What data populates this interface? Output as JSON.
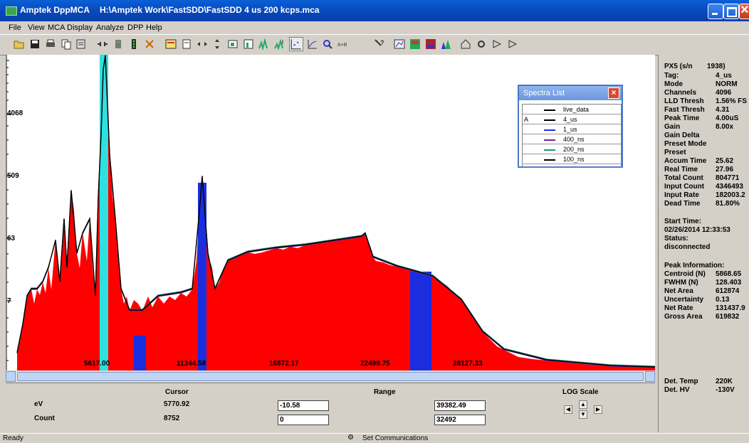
{
  "window": {
    "app_title": "Amptek DppMCA",
    "file_path": "H:\\Amptek Work\\FastSDD\\FastSDD 4 us 200 kcps.mca"
  },
  "menu": [
    "File",
    "View",
    "MCA",
    "Display",
    "Analyze",
    "DPP",
    "Help"
  ],
  "plot": {
    "y_ticks": [
      "4068",
      "509",
      "63",
      "7"
    ],
    "x_ticks": [
      "5617.00",
      "11244.58",
      "16872.17",
      "22499.75",
      "28127.33"
    ]
  },
  "spectra_list": {
    "title": "Spectra List",
    "items": [
      {
        "marker": "",
        "name": "live_data",
        "color": "#000000"
      },
      {
        "marker": "A",
        "name": "4_us",
        "color": "#000000"
      },
      {
        "marker": "",
        "name": "1_us",
        "color": "#1f2ee8"
      },
      {
        "marker": "",
        "name": "400_ns",
        "color": "#7a1a9a"
      },
      {
        "marker": "",
        "name": "200_ns",
        "color": "#1e9a6a"
      },
      {
        "marker": "",
        "name": "100_ns",
        "color": "#000000"
      }
    ]
  },
  "info": {
    "device": "PX5 (s/n",
    "serial": "1938)",
    "rows": [
      {
        "label": "Tag:",
        "value": "4_us"
      },
      {
        "label": "Mode",
        "value": "NORM"
      },
      {
        "label": "Channels",
        "value": "4096"
      },
      {
        "label": "LLD Thresh",
        "value": "1.56% FS"
      },
      {
        "label": "Fast Thresh",
        "value": "4.31"
      },
      {
        "label": "Peak Time",
        "value": "4.00uS"
      },
      {
        "label": "Gain",
        "value": "8.00x"
      },
      {
        "label": "Gain Delta",
        "value": ""
      },
      {
        "label": "Preset Mode",
        "value": ""
      },
      {
        "label": "Preset",
        "value": ""
      },
      {
        "label": "Accum Time",
        "value": "25.62"
      },
      {
        "label": "Real Time",
        "value": "27.96"
      },
      {
        "label": "Total Count",
        "value": "804771"
      },
      {
        "label": "Input Count",
        "value": "4346493"
      },
      {
        "label": "Input Rate",
        "value": "182003.2"
      },
      {
        "label": "Dead Time",
        "value": "81.80%"
      }
    ],
    "start_time_label": "Start Time:",
    "start_time": "02/26/2014 12:33:53",
    "status_label": "Status:",
    "status": "disconnected",
    "peak_heading": "Peak Information:",
    "peak_rows": [
      {
        "label": "Centroid (N)",
        "value": "5868.65"
      },
      {
        "label": "FWHM (N)",
        "value": "128.403"
      },
      {
        "label": "Net Area",
        "value": "612874"
      },
      {
        "label": "Uncertainty",
        "value": "0.13"
      },
      {
        "label": "Net Rate",
        "value": "131437.9"
      },
      {
        "label": "Gross Area",
        "value": "619832"
      }
    ],
    "det_rows": [
      {
        "label": "Det. Temp",
        "value": "220K"
      },
      {
        "label": "Det. HV",
        "value": "-130V"
      }
    ]
  },
  "bottom": {
    "cursor_label": "Cursor",
    "range_label": "Range",
    "log_label": "LOG Scale",
    "ev_label": "eV",
    "count_label": "Count",
    "cursor_ev": "5770.92",
    "cursor_count": "8752",
    "range_ev_min": "-10.58",
    "range_ev_max": "39382.49",
    "range_count_min": "0",
    "range_count_max": "32492"
  },
  "status": {
    "ready": "Ready",
    "comm": "Set Communications"
  }
}
